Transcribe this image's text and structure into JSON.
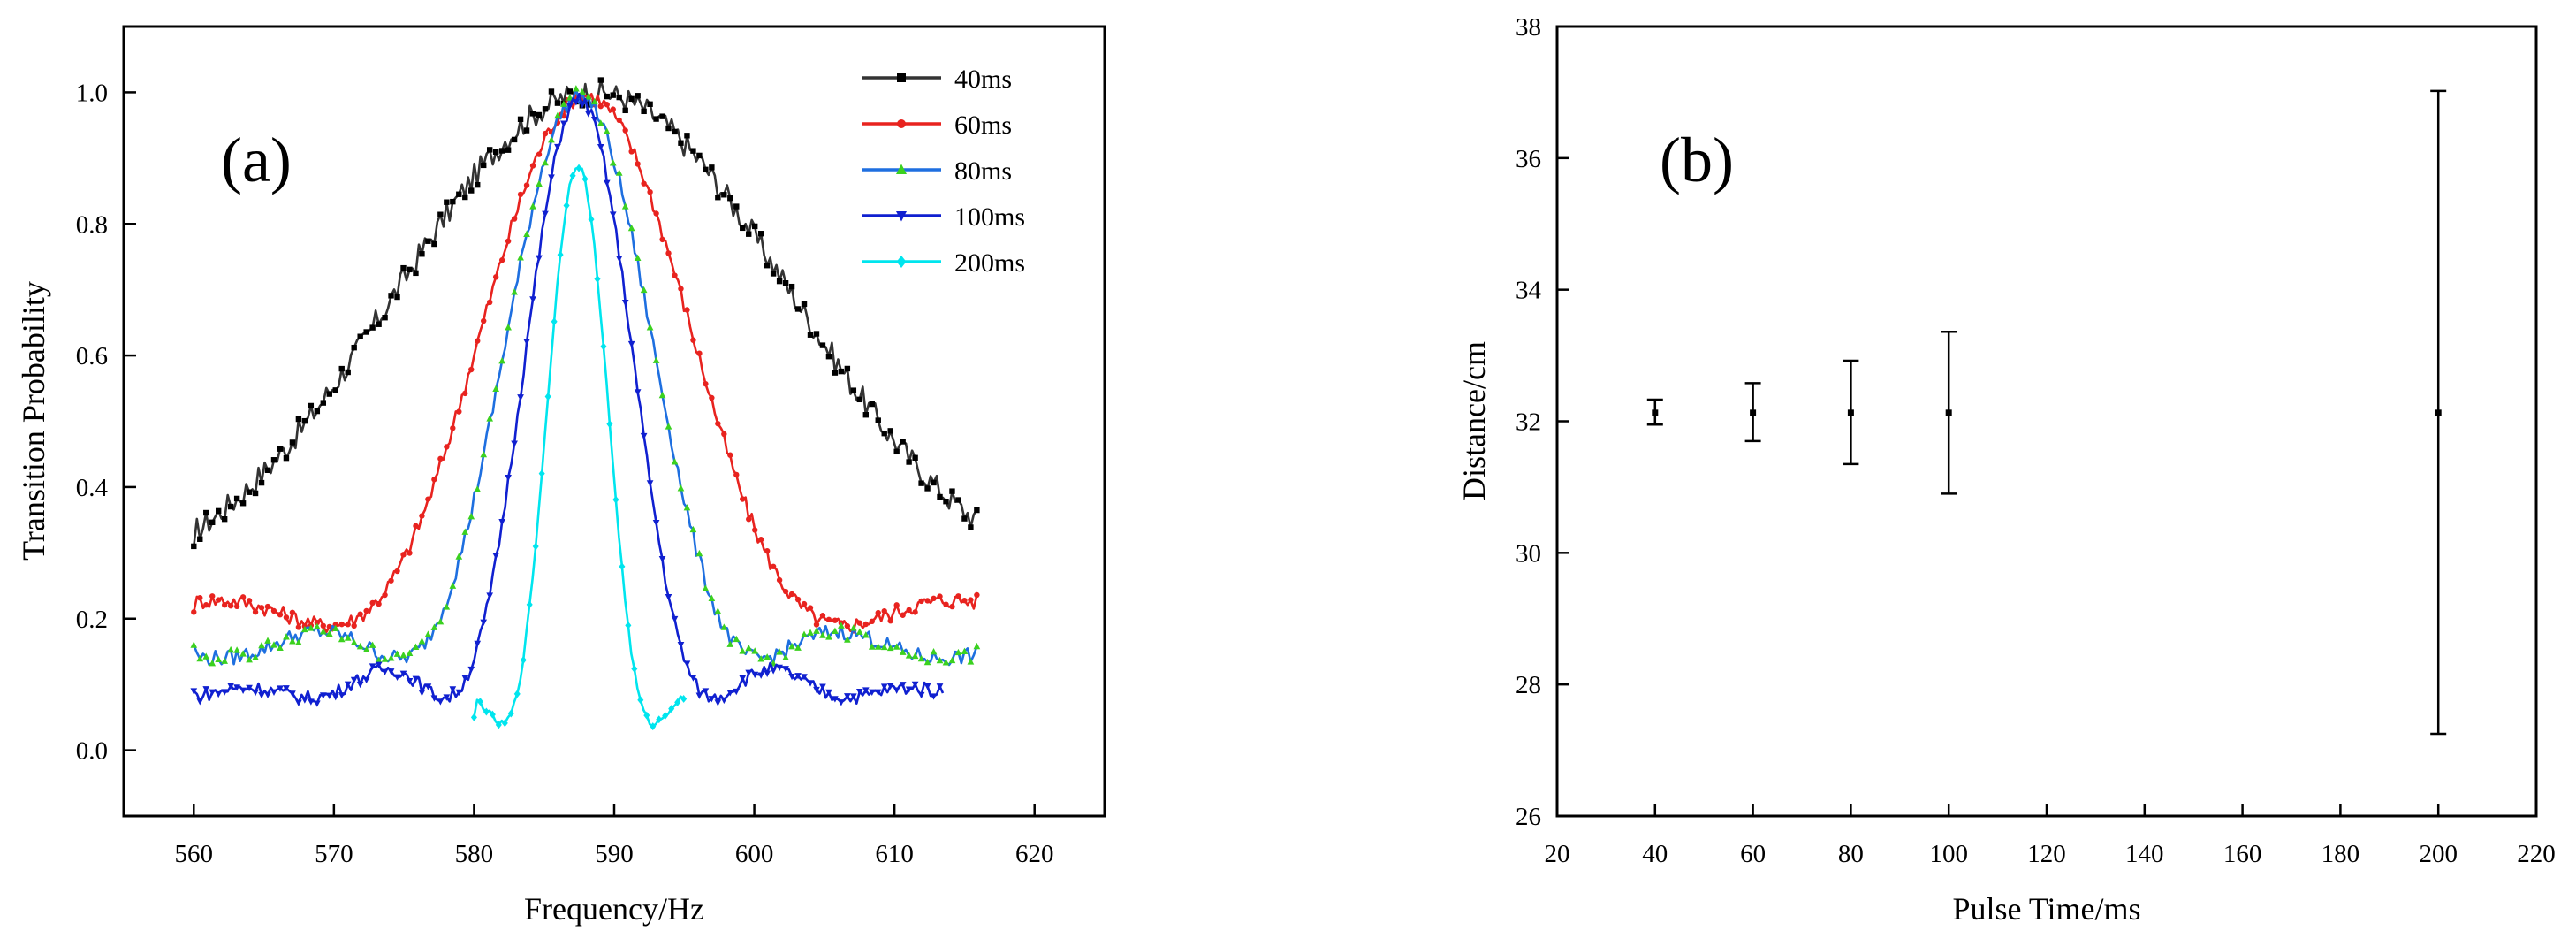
{
  "chart_data": [
    {
      "type": "line",
      "panel_label": "(a)",
      "xlabel": "Frequency/Hz",
      "ylabel": "Transition Probability",
      "xlim": [
        555,
        625
      ],
      "ylim": [
        -0.1,
        1.1
      ],
      "xticks": [
        "560",
        "570",
        "580",
        "590",
        "600",
        "610",
        "620"
      ],
      "yticks": [
        "0.0",
        "0.2",
        "0.4",
        "0.6",
        "0.8",
        "1.0"
      ],
      "legend_position": "top-right",
      "series": [
        {
          "name": "40ms",
          "color": "#000000",
          "line_color": "#333333",
          "marker": "square",
          "center": 588.5,
          "fwhm": 33,
          "peak": 1.0,
          "base": 0.235,
          "sinc": false,
          "x_start": 560,
          "x_end": 616,
          "noise": 0.02,
          "start_value": 0.31
        },
        {
          "name": "60ms",
          "color": "#e8231f",
          "line_color": "#e8231f",
          "marker": "circle",
          "center": 588.0,
          "fwhm": 22,
          "peak": 0.995,
          "base": 0.19,
          "sinc": true,
          "x_start": 560,
          "x_end": 616,
          "noise": 0.012,
          "start_value": 0.21
        },
        {
          "name": "80ms",
          "color": "#3bd11f",
          "line_color": "#1e6fe0",
          "marker": "triangle-up",
          "center": 587.5,
          "fwhm": 15.5,
          "peak": 0.995,
          "base": 0.14,
          "sinc": true,
          "x_start": 560,
          "x_end": 616,
          "noise": 0.012,
          "start_value": 0.16
        },
        {
          "name": "100ms",
          "color": "#1020d0",
          "line_color": "#1020d0",
          "marker": "triangle-down",
          "center": 587.5,
          "fwhm": 11.5,
          "peak": 0.99,
          "base": 0.08,
          "sinc": true,
          "x_start": 560,
          "x_end": 613.5,
          "noise": 0.01,
          "start_value": 0.09
        },
        {
          "name": "200ms",
          "color": "#00e5ee",
          "line_color": "#00e5ee",
          "marker": "diamond",
          "center": 587.4,
          "fwhm": 6.5,
          "peak": 0.89,
          "base": 0.04,
          "sinc": true,
          "x_start": 580,
          "x_end": 595,
          "noise": 0.005,
          "start_value": 0.05
        }
      ]
    },
    {
      "type": "scatter",
      "panel_label": "(b)",
      "xlabel": "Pulse Time/ms",
      "ylabel": "Distance/cm",
      "xlim": [
        20,
        220
      ],
      "ylim": [
        26,
        38
      ],
      "xticks": [
        "20",
        "40",
        "60",
        "80",
        "100",
        "120",
        "140",
        "160",
        "180",
        "200",
        "220"
      ],
      "yticks": [
        "26",
        "28",
        "30",
        "32",
        "34",
        "36",
        "38"
      ],
      "series": [
        {
          "name": "Distance",
          "x": [
            40,
            60,
            80,
            100,
            200
          ],
          "y": [
            32.13,
            32.13,
            32.13,
            32.13,
            32.13
          ],
          "error_low": [
            31.95,
            31.7,
            31.35,
            30.9,
            27.25
          ],
          "error_high": [
            32.33,
            32.58,
            32.92,
            33.36,
            37.02
          ]
        }
      ]
    }
  ]
}
